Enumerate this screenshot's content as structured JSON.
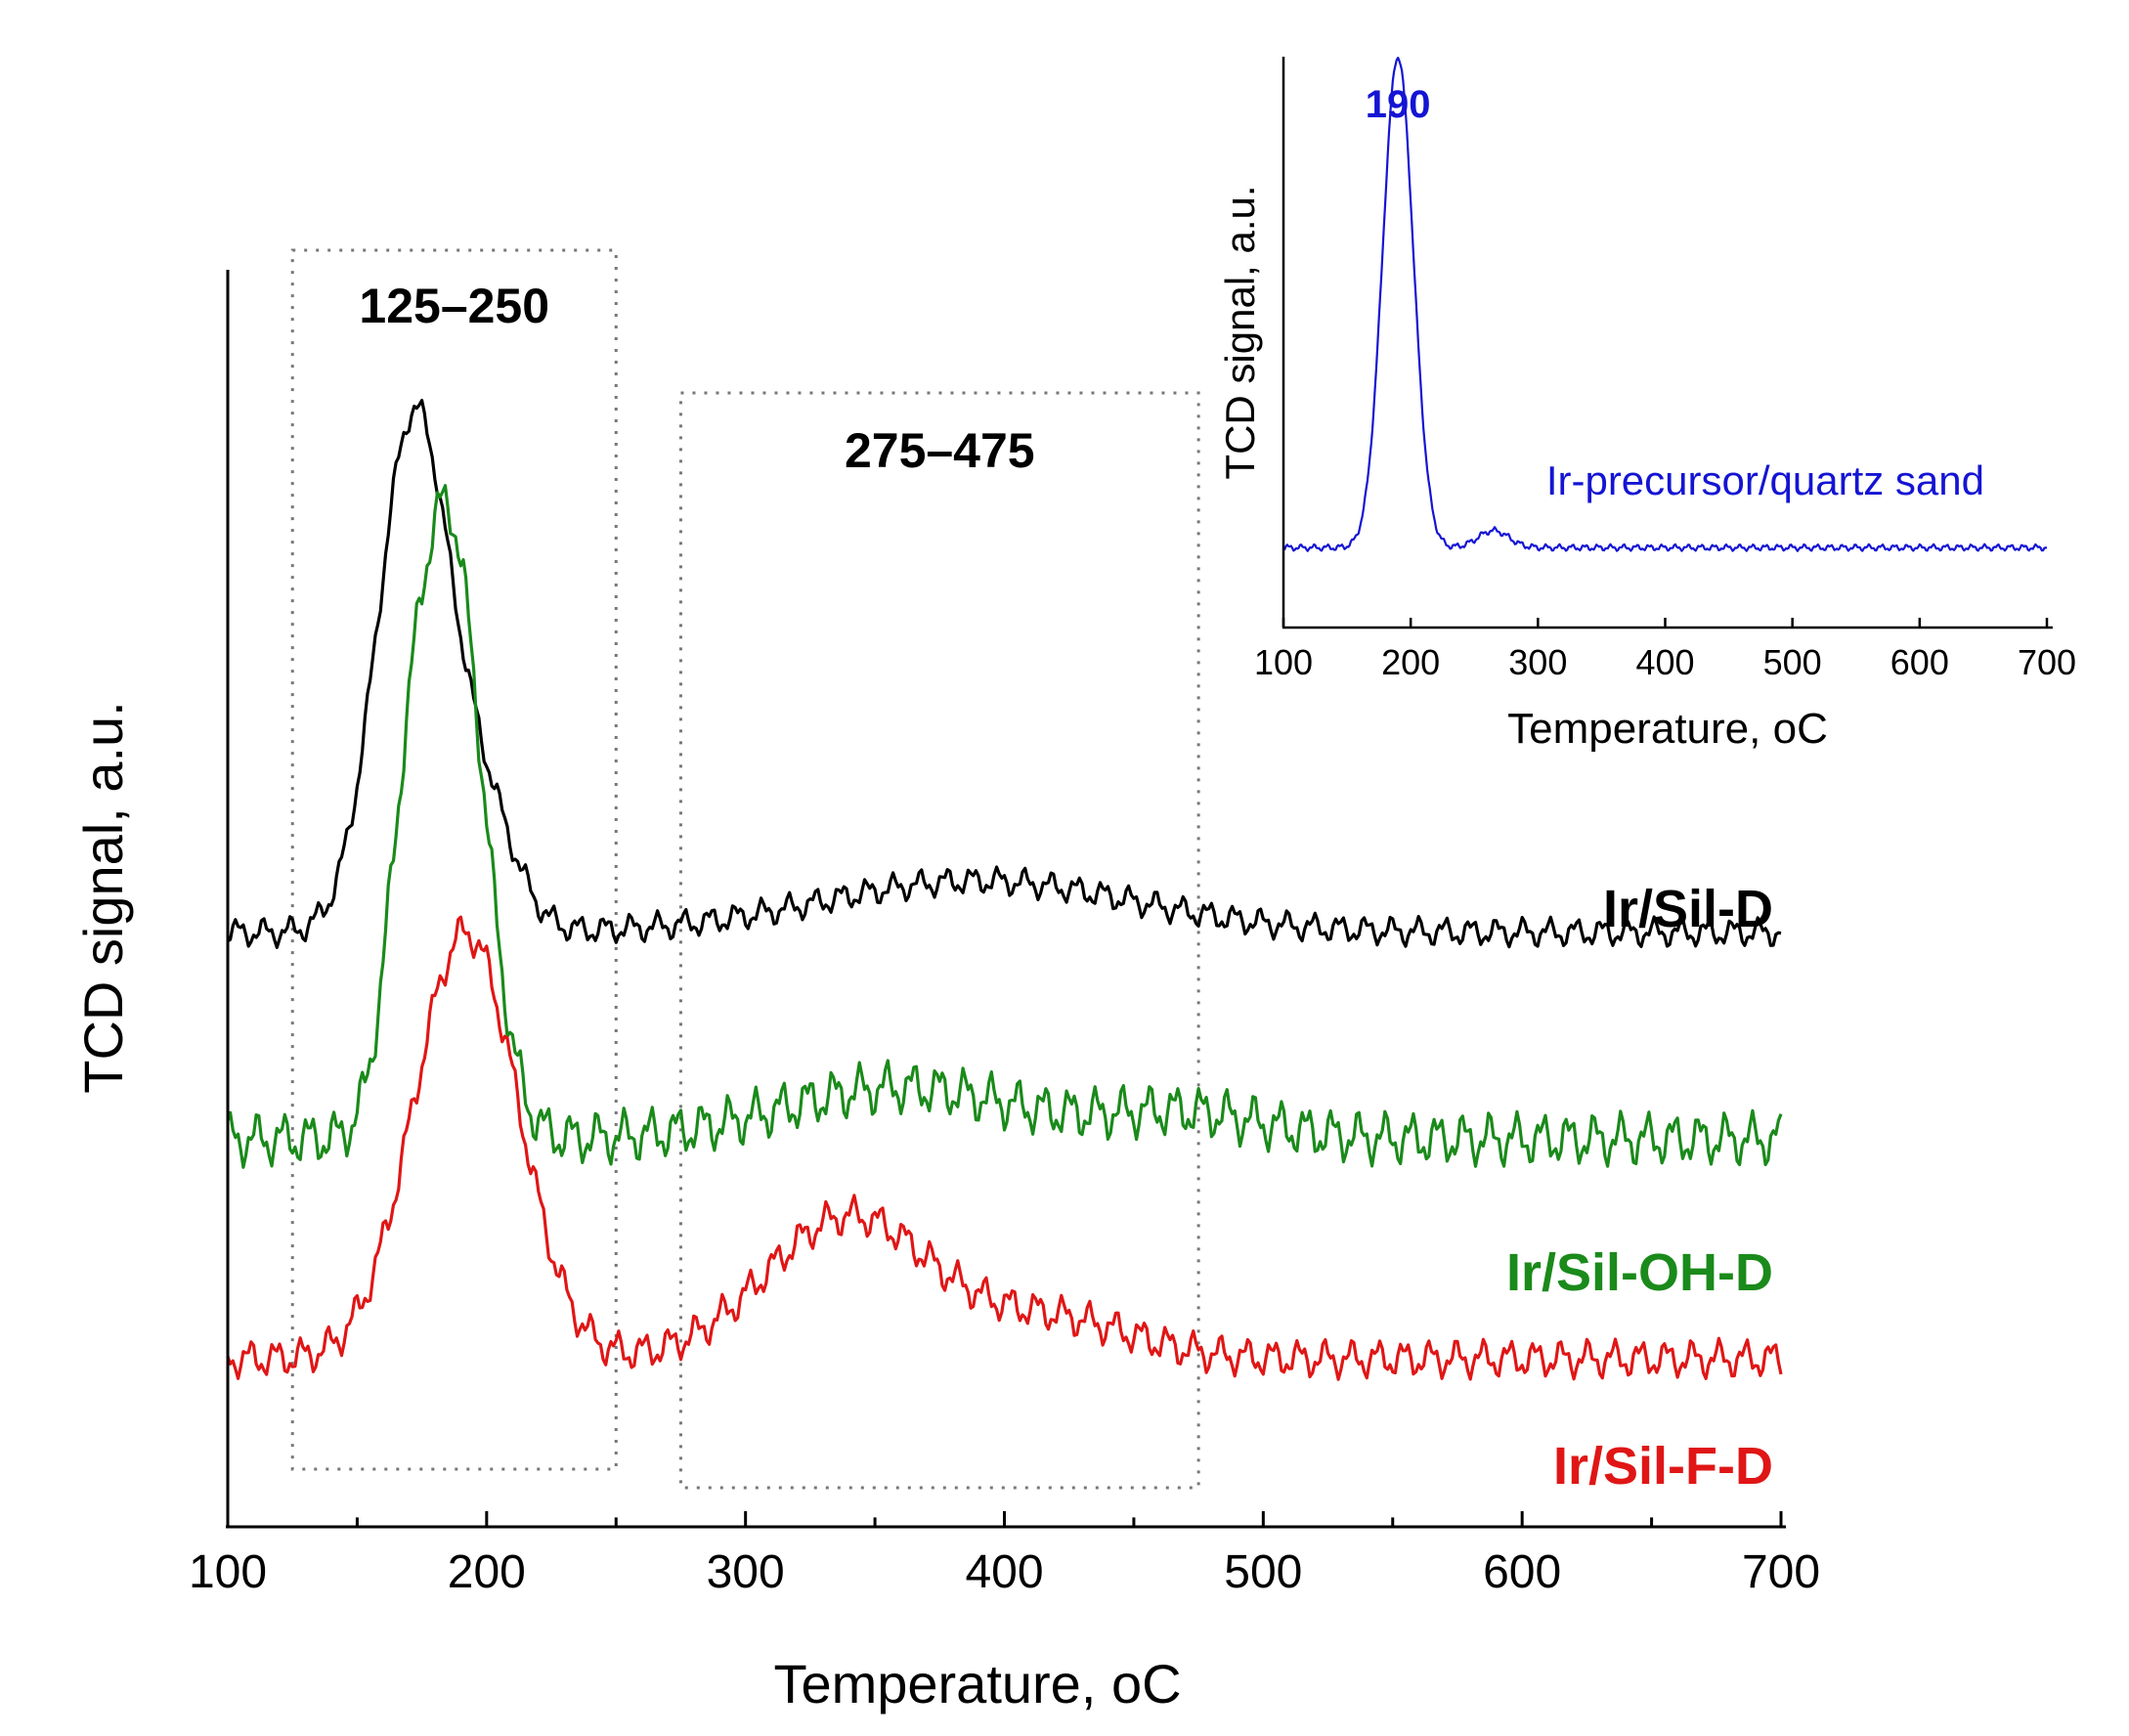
{
  "chart_data": [
    {
      "type": "line",
      "title": "",
      "xlabel": "Temperature, ",
      "xlabel_unit": "oC",
      "ylabel": "TCD signal, a.u.",
      "xlim": [
        100,
        700
      ],
      "xticks": [
        100,
        200,
        300,
        400,
        500,
        600,
        700
      ],
      "ylim": [
        0,
        1
      ],
      "y_ticks_shown": false,
      "regions": [
        {
          "label": "125–250",
          "x_start": 125,
          "x_end": 250
        },
        {
          "label": "275–475",
          "x_start": 275,
          "x_end": 475
        }
      ],
      "series": [
        {
          "name": "Ir/Sil-D",
          "color": "#000000",
          "baseline": 0.46,
          "peaks": [
            {
              "center": 172,
              "height": 0.4,
              "width": 14
            },
            {
              "center": 200,
              "height": 0.08,
              "width": 12
            },
            {
              "center": 390,
              "height": 0.04,
              "width": 60
            }
          ],
          "noise": 0.012
        },
        {
          "name": "Ir/Sil-OH-D",
          "color": "#1a8a1a",
          "baseline": 0.3,
          "peaks": [
            {
              "center": 185,
              "height": 0.48,
              "width": 13
            },
            {
              "center": 168,
              "height": 0.1,
              "width": 8
            },
            {
              "center": 360,
              "height": 0.04,
              "width": 45
            },
            {
              "center": 470,
              "height": 0.02,
              "width": 30
            }
          ],
          "noise": 0.022
        },
        {
          "name": "Ir/Sil-F-D",
          "color": "#e01616",
          "baseline": 0.13,
          "peaks": [
            {
              "center": 192,
              "height": 0.33,
              "width": 20
            },
            {
              "center": 340,
              "height": 0.11,
              "width": 32
            },
            {
              "center": 420,
              "height": 0.03,
              "width": 30
            }
          ],
          "noise": 0.016
        }
      ]
    },
    {
      "type": "line",
      "title": "inset",
      "xlabel": "Temperature, ",
      "xlabel_unit": "oC",
      "ylabel": "TCD signal, a.u.",
      "xlim": [
        100,
        700
      ],
      "xticks": [
        100,
        200,
        300,
        400,
        500,
        600,
        700
      ],
      "ylim": [
        0,
        1
      ],
      "peak_annotation": {
        "x": 190,
        "label": "190"
      },
      "series": [
        {
          "name": "Ir-precursor/quartz sand",
          "color": "#1414d4",
          "baseline": 0.14,
          "peaks": [
            {
              "center": 190,
              "height": 0.86,
              "width": 12
            },
            {
              "center": 265,
              "height": 0.03,
              "width": 12
            }
          ],
          "noise": 0.006
        }
      ]
    }
  ]
}
